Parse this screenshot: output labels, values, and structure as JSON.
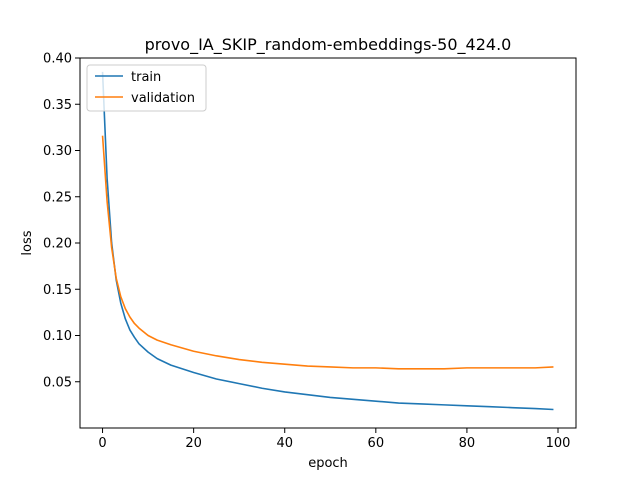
{
  "chart_data": {
    "type": "line",
    "title": "provo_IA_SKIP_random-embeddings-50_424.0",
    "xlabel": "epoch",
    "ylabel": "loss",
    "xlim": [
      -4.95,
      103.95
    ],
    "ylim": [
      0.0,
      0.4
    ],
    "xticks": [
      0,
      20,
      40,
      60,
      80,
      100
    ],
    "yticks": [
      0.05,
      0.1,
      0.15,
      0.2,
      0.25,
      0.3,
      0.35,
      0.4
    ],
    "legend_position": "top-left",
    "grid": false,
    "series": [
      {
        "name": "train",
        "color": "#1f77b4",
        "x": [
          0,
          1,
          2,
          3,
          4,
          5,
          6,
          7,
          8,
          10,
          12,
          15,
          20,
          25,
          30,
          35,
          40,
          45,
          50,
          55,
          60,
          65,
          70,
          75,
          80,
          85,
          90,
          95,
          99
        ],
        "y": [
          0.385,
          0.27,
          0.2,
          0.16,
          0.135,
          0.118,
          0.106,
          0.098,
          0.091,
          0.082,
          0.075,
          0.068,
          0.06,
          0.053,
          0.048,
          0.043,
          0.039,
          0.036,
          0.033,
          0.031,
          0.029,
          0.027,
          0.026,
          0.025,
          0.024,
          0.023,
          0.022,
          0.021,
          0.02
        ]
      },
      {
        "name": "validation",
        "color": "#ff7f0e",
        "x": [
          0,
          1,
          2,
          3,
          4,
          5,
          6,
          7,
          8,
          10,
          12,
          15,
          20,
          25,
          30,
          35,
          40,
          45,
          50,
          55,
          60,
          65,
          70,
          75,
          80,
          85,
          90,
          95,
          99
        ],
        "y": [
          0.316,
          0.245,
          0.195,
          0.162,
          0.142,
          0.129,
          0.12,
          0.113,
          0.108,
          0.1,
          0.095,
          0.09,
          0.083,
          0.078,
          0.074,
          0.071,
          0.069,
          0.067,
          0.066,
          0.065,
          0.065,
          0.064,
          0.064,
          0.064,
          0.065,
          0.065,
          0.065,
          0.065,
          0.066
        ]
      }
    ]
  }
}
